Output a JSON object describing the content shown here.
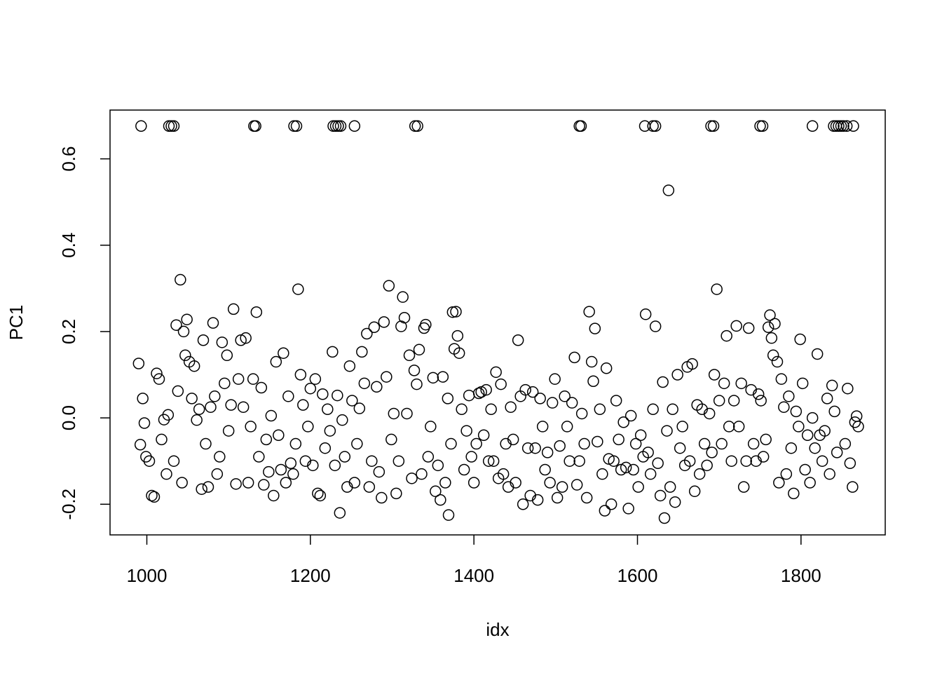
{
  "chart_data": {
    "type": "scatter",
    "x_label": "idx",
    "y_label": "PC1",
    "xlim": [
      955,
      1903
    ],
    "ylim": [
      -0.271,
      0.713
    ],
    "xticks": [
      1000,
      1200,
      1400,
      1600,
      1800
    ],
    "yticks": [
      -0.2,
      {
        "value": 0,
        "label": "0.0"
      },
      0.2,
      0.4,
      0.6
    ],
    "color": "#000000",
    "series": [
      {
        "x": [
          990,
          992,
          995,
          997,
          999,
          1003,
          1006,
          1009,
          1012,
          1015,
          1018,
          1021,
          1024,
          1026,
          1033,
          1036,
          1038,
          1041,
          1043,
          1045,
          1047,
          1049,
          1052,
          1055,
          1058,
          1061,
          1064,
          1067,
          1069,
          1072,
          1075,
          1078,
          1081,
          1083,
          1086,
          1089,
          1092,
          1095,
          1098,
          1100,
          1103,
          1106,
          1109,
          1112,
          1115,
          1118,
          1121,
          1124,
          1127,
          1130,
          1134,
          1137,
          1140,
          1143,
          1146,
          1149,
          1152,
          1155,
          1158,
          1161,
          1164,
          1167,
          1170,
          1173,
          1176,
          1179,
          1182,
          1185,
          1188,
          1191,
          1194,
          1197,
          1200,
          1203,
          1206,
          1209,
          1212,
          1215,
          1218,
          1221,
          1224,
          1227,
          1230,
          1233,
          1236,
          1239,
          1242,
          1245,
          1248,
          1251,
          1254,
          1257,
          1260,
          1263,
          1266,
          1269,
          1272,
          1275,
          1278,
          1281,
          1284,
          1287,
          1290,
          1293,
          1296,
          1299,
          1302,
          1305,
          1308,
          1311,
          1313,
          1315,
          1318,
          1321,
          1324,
          1327,
          1330,
          1333,
          1336,
          1339,
          1341,
          1344,
          1347,
          1350,
          1353,
          1356,
          1359,
          1362,
          1365,
          1368,
          1369,
          1372,
          1374,
          1376,
          1378,
          1380,
          1382,
          1385,
          1388,
          1391,
          1394,
          1397,
          1400,
          1403,
          1406,
          1409,
          1412,
          1415,
          1418,
          1421,
          1424,
          1427,
          1430,
          1433,
          1436,
          1439,
          1442,
          1445,
          1448,
          1451,
          1454,
          1457,
          1460,
          1463,
          1466,
          1469,
          1472,
          1475,
          1478,
          1481,
          1484,
          1487,
          1490,
          1493,
          1496,
          1499,
          1502,
          1505,
          1508,
          1511,
          1514,
          1517,
          1520,
          1523,
          1526,
          1529,
          1532,
          1535,
          1538,
          1541,
          1544,
          1546,
          1548,
          1551,
          1554,
          1557,
          1560,
          1562,
          1565,
          1568,
          1571,
          1574,
          1577,
          1580,
          1583,
          1586,
          1589,
          1592,
          1595,
          1598,
          1601,
          1604,
          1607,
          1610,
          1613,
          1616,
          1619,
          1622,
          1625,
          1628,
          1631,
          1633,
          1636,
          1638,
          1640,
          1643,
          1646,
          1649,
          1652,
          1655,
          1658,
          1661,
          1664,
          1667,
          1670,
          1673,
          1676,
          1679,
          1682,
          1685,
          1688,
          1691,
          1694,
          1697,
          1700,
          1703,
          1706,
          1709,
          1712,
          1715,
          1718,
          1721,
          1724,
          1727,
          1730,
          1733,
          1736,
          1739,
          1742,
          1745,
          1748,
          1751,
          1754,
          1757,
          1760,
          1762,
          1764,
          1766,
          1768,
          1771,
          1773,
          1776,
          1779,
          1782,
          1785,
          1788,
          1791,
          1794,
          1797,
          1799,
          1802,
          1805,
          1808,
          1811,
          1814,
          1817,
          1820,
          1823,
          1826,
          1829,
          1832,
          1835,
          1838,
          1841,
          1844,
          1854,
          1857,
          1860,
          1863,
          1866,
          1868,
          1870,
          993,
          1027,
          1030,
          1033,
          1131,
          1133,
          1180,
          1183,
          1228,
          1231,
          1234,
          1237,
          1254,
          1328,
          1331,
          1529,
          1531,
          1609,
          1619,
          1622,
          1690,
          1693,
          1750,
          1753,
          1814,
          1840,
          1843,
          1846,
          1849,
          1852,
          1856,
          1864
        ],
        "values": [
          0.126,
          -0.062,
          0.045,
          -0.012,
          -0.09,
          -0.1,
          -0.18,
          -0.183,
          0.103,
          0.09,
          -0.05,
          -0.004,
          -0.13,
          0.007,
          -0.1,
          0.215,
          0.062,
          0.32,
          -0.15,
          0.2,
          0.145,
          0.228,
          0.13,
          0.045,
          0.12,
          -0.005,
          0.02,
          -0.165,
          0.18,
          -0.06,
          -0.16,
          0.025,
          0.22,
          0.05,
          -0.13,
          -0.09,
          0.175,
          0.08,
          0.145,
          -0.03,
          0.03,
          0.252,
          -0.153,
          0.09,
          0.18,
          0.025,
          0.185,
          -0.15,
          -0.02,
          0.09,
          0.245,
          -0.09,
          0.07,
          -0.155,
          -0.05,
          -0.125,
          0.005,
          -0.18,
          0.13,
          -0.04,
          -0.12,
          0.15,
          -0.15,
          0.05,
          -0.105,
          -0.13,
          -0.06,
          0.298,
          0.1,
          0.03,
          -0.1,
          -0.02,
          0.068,
          -0.11,
          0.09,
          -0.175,
          -0.18,
          0.055,
          -0.07,
          0.02,
          -0.03,
          0.153,
          -0.11,
          0.052,
          -0.22,
          -0.005,
          -0.09,
          -0.16,
          0.12,
          0.04,
          -0.15,
          -0.06,
          0.022,
          0.153,
          0.08,
          0.195,
          -0.16,
          -0.1,
          0.21,
          0.072,
          -0.125,
          -0.185,
          0.222,
          0.095,
          0.306,
          -0.05,
          0.01,
          -0.175,
          -0.1,
          0.212,
          0.28,
          0.232,
          0.01,
          0.145,
          -0.14,
          0.11,
          0.078,
          0.158,
          -0.13,
          0.208,
          0.216,
          -0.09,
          -0.02,
          0.093,
          -0.17,
          -0.11,
          -0.19,
          0.095,
          -0.15,
          0.045,
          -0.225,
          -0.06,
          0.245,
          0.16,
          0.246,
          0.19,
          0.15,
          0.02,
          -0.12,
          -0.03,
          0.052,
          -0.09,
          -0.15,
          -0.06,
          0.057,
          0.06,
          -0.04,
          0.065,
          -0.1,
          0.02,
          -0.1,
          0.106,
          -0.14,
          0.078,
          -0.13,
          -0.06,
          -0.16,
          0.025,
          -0.05,
          -0.15,
          0.18,
          0.05,
          -0.2,
          0.065,
          -0.07,
          -0.18,
          0.06,
          -0.07,
          -0.19,
          0.045,
          -0.02,
          -0.12,
          -0.08,
          -0.15,
          0.035,
          0.09,
          -0.185,
          -0.065,
          -0.16,
          0.05,
          -0.02,
          -0.1,
          0.035,
          0.14,
          -0.155,
          -0.1,
          0.01,
          -0.06,
          -0.185,
          0.246,
          0.13,
          0.085,
          0.207,
          -0.055,
          0.02,
          -0.13,
          -0.215,
          0.115,
          -0.095,
          -0.2,
          -0.1,
          0.04,
          -0.05,
          -0.12,
          -0.01,
          -0.115,
          -0.21,
          0.005,
          -0.12,
          -0.06,
          -0.16,
          -0.04,
          -0.09,
          0.24,
          -0.08,
          -0.13,
          0.02,
          0.212,
          -0.105,
          -0.18,
          0.083,
          -0.232,
          -0.03,
          0.527,
          -0.16,
          0.02,
          -0.195,
          0.1,
          -0.07,
          -0.02,
          -0.11,
          0.118,
          -0.1,
          0.125,
          -0.17,
          0.03,
          -0.13,
          0.02,
          -0.06,
          -0.11,
          0.01,
          -0.08,
          0.1,
          0.298,
          0.04,
          -0.06,
          0.08,
          0.19,
          -0.02,
          -0.1,
          0.04,
          0.213,
          -0.02,
          0.08,
          -0.16,
          -0.1,
          0.208,
          0.065,
          -0.06,
          -0.1,
          0.055,
          0.04,
          -0.09,
          -0.05,
          0.21,
          0.238,
          0.185,
          0.145,
          0.218,
          0.13,
          -0.15,
          0.09,
          0.025,
          -0.13,
          0.05,
          -0.07,
          -0.175,
          0.015,
          -0.02,
          0.182,
          0.08,
          -0.12,
          -0.04,
          -0.15,
          0,
          -0.07,
          0.148,
          -0.04,
          -0.1,
          -0.03,
          0.045,
          -0.13,
          0.075,
          0.015,
          -0.08,
          -0.06,
          0.068,
          -0.105,
          -0.16,
          -0.01,
          0.004,
          -0.02,
          0.676,
          0.676,
          0.676,
          0.676,
          0.676,
          0.676,
          0.676,
          0.676,
          0.676,
          0.676,
          0.676,
          0.676,
          0.676,
          0.676,
          0.676,
          0.676,
          0.676,
          0.676,
          0.676,
          0.676,
          0.676,
          0.676,
          0.676,
          0.676,
          0.676,
          0.676,
          0.676,
          0.676,
          0.676,
          0.676,
          0.676,
          0.676
        ]
      }
    ]
  }
}
